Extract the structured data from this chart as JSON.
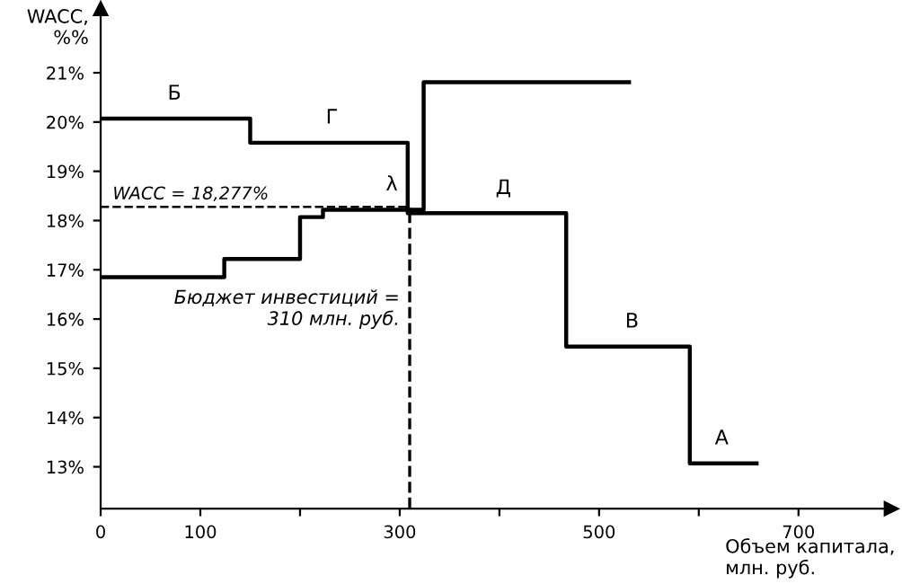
{
  "chart_data": {
    "type": "step",
    "xlabel": "Объем капитала,\nмлн. руб.",
    "ylabel": "WACC,\n%%",
    "series": [
      {
        "color": "#000000",
        "x": [
          0,
          150,
          308,
          467,
          591,
          658
        ],
        "values": [
          20.07,
          19.58,
          18.15,
          15.44,
          13.07,
          13.07
        ]
      },
      {
        "color": "#000000",
        "x": [
          0,
          124,
          200,
          223,
          324,
          530
        ],
        "values": [
          16.85,
          17.22,
          18.07,
          18.22,
          20.81,
          20.81
        ]
      }
    ],
    "xlim": [
      0,
      793
    ],
    "ylim": [
      12.15,
      22.3
    ],
    "xticks": [
      0,
      100,
      {
        "value": 200,
        "label": null
      },
      300,
      {
        "value": 400,
        "label": null
      },
      500,
      {
        "value": 600,
        "label": null
      },
      700
    ],
    "yticks": [
      {
        "value": 13,
        "label": "13%"
      },
      {
        "value": 14,
        "label": "14%"
      },
      {
        "value": 15,
        "label": "15%"
      },
      {
        "value": 16,
        "label": "16%"
      },
      {
        "value": 17,
        "label": "17%"
      },
      {
        "value": 18,
        "label": "18%"
      },
      {
        "value": 19,
        "label": "19%"
      },
      {
        "value": 20,
        "label": "20%"
      },
      {
        "value": 21,
        "label": "21%"
      }
    ],
    "ref_lines": [
      {
        "axis": "y",
        "value": 18.277,
        "label": "WACC = 18,277%",
        "color": "#000000",
        "line_style": "dashed"
      },
      {
        "axis": "x",
        "value": 310,
        "label": "Бюджет инвестиций =\n310 млн. руб.",
        "color": "#000000",
        "line_style": "dashed"
      }
    ],
    "annotations": [
      {
        "text": "Б",
        "x": 74,
        "y": 20.07
      },
      {
        "text": "Г",
        "x": 232,
        "y": 19.58
      },
      {
        "text": "Д",
        "x": 404,
        "y": 18.15
      },
      {
        "text": "В",
        "x": 533,
        "y": 15.44
      },
      {
        "text": "А",
        "x": 623,
        "y": 13.07
      },
      {
        "text": "λ",
        "x": 292,
        "y": 18.22
      }
    ],
    "grid": false,
    "legend": false
  }
}
